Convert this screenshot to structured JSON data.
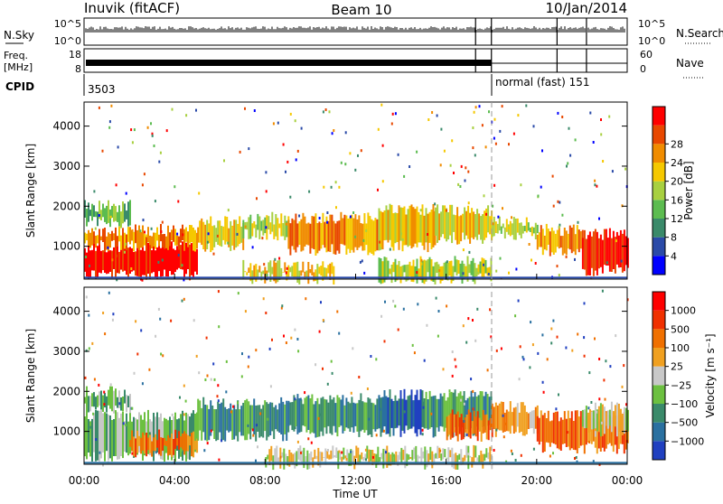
{
  "header": {
    "station": "Inuvik (fitACF)",
    "beam": "Beam 10",
    "date": "10/Jan/2014"
  },
  "top_panels": {
    "nsky_label": "N.Sky",
    "nsky_ticks": [
      "10^5",
      "10^0"
    ],
    "nsearch_label": "N.Search",
    "nsearch_ticks": [
      "10^5",
      "10^0"
    ],
    "freq_label": "Freq.",
    "freq_unit": "[MHz]",
    "freq_ticks": [
      "18",
      "8"
    ],
    "nave_label": "Nave",
    "nave_ticks": [
      "60",
      "0"
    ],
    "cpid_label": "CPID",
    "cpid_segments": [
      {
        "start_hour": 0.0,
        "text": "3503"
      },
      {
        "start_hour": 18.0,
        "text": "normal (fast) 151"
      }
    ]
  },
  "x_axis": {
    "label": "Time UT",
    "ticks": [
      "00:00",
      "04:00",
      "08:00",
      "12:00",
      "16:00",
      "20:00",
      "00:00"
    ],
    "range_hours": [
      0,
      24
    ]
  },
  "chart_data": [
    {
      "type": "heatmap",
      "quantity": "power",
      "ylabel": "Slant Range [km]",
      "ylim": [
        180,
        4600
      ],
      "yticks": [
        "1000",
        "2000",
        "3000",
        "4000"
      ],
      "colorbar_label": "Power [dB]",
      "colorbar_ticks": [
        "4",
        "8",
        "12",
        "16",
        "20",
        "24",
        "28"
      ],
      "colors": [
        "#0000ff",
        "#2a4aa8",
        "#3a8a6a",
        "#5cbc50",
        "#a8d040",
        "#f5c800",
        "#f08c00",
        "#e84800",
        "#ff0000"
      ],
      "regions": [
        {
          "t": [
            0.0,
            5.0
          ],
          "r": [
            300,
            1000
          ],
          "level": 8
        },
        {
          "t": [
            0.0,
            5.0
          ],
          "r": [
            1000,
            1400
          ],
          "level": 6
        },
        {
          "t": [
            0.0,
            2.0
          ],
          "r": [
            1600,
            2000
          ],
          "level": 3
        },
        {
          "t": [
            5.0,
            7.0
          ],
          "r": [
            1000,
            1600
          ],
          "level": 5
        },
        {
          "t": [
            7.0,
            9.0
          ],
          "r": [
            1300,
            1700
          ],
          "level": 4
        },
        {
          "t": [
            9.0,
            13.0
          ],
          "r": [
            900,
            1700
          ],
          "level": 6
        },
        {
          "t": [
            13.0,
            15.5
          ],
          "r": [
            1000,
            1900
          ],
          "level": 5
        },
        {
          "t": [
            15.5,
            18.0
          ],
          "r": [
            1200,
            1900
          ],
          "level": 5
        },
        {
          "t": [
            18.0,
            20.0
          ],
          "r": [
            1300,
            1600
          ],
          "level": 4
        },
        {
          "t": [
            20.0,
            22.0
          ],
          "r": [
            900,
            1400
          ],
          "level": 6
        },
        {
          "t": [
            22.0,
            24.0
          ],
          "r": [
            400,
            1300
          ],
          "level": 8
        },
        {
          "t": [
            7.0,
            11.0
          ],
          "r": [
            200,
            500
          ],
          "level": 5
        },
        {
          "t": [
            13.0,
            18.0
          ],
          "r": [
            200,
            600
          ],
          "level": 4
        }
      ]
    },
    {
      "type": "heatmap",
      "quantity": "velocity",
      "ylabel": "Slant Range [km]",
      "ylim": [
        180,
        4600
      ],
      "yticks": [
        "1000",
        "2000",
        "3000",
        "4000"
      ],
      "colorbar_label": "Velocity [m s⁻¹]",
      "colorbar_ticks": [
        "1000",
        "500",
        "100",
        "25",
        "−25",
        "−100",
        "−500",
        "−1000"
      ],
      "colors": [
        "#2040c0",
        "#2a70a0",
        "#3a8a6a",
        "#6cc040",
        "#c8c8c8",
        "#f0a020",
        "#f07000",
        "#f03000",
        "#ff0000"
      ],
      "regions": [
        {
          "t": [
            0.0,
            5.0
          ],
          "r": [
            400,
            1400
          ],
          "level": 3
        },
        {
          "t": [
            0.0,
            2.0
          ],
          "r": [
            1600,
            2000
          ],
          "level": 3
        },
        {
          "t": [
            2.0,
            5.0
          ],
          "r": [
            500,
            900
          ],
          "level": 6
        },
        {
          "t": [
            5.0,
            9.0
          ],
          "r": [
            900,
            1700
          ],
          "level": 2
        },
        {
          "t": [
            9.0,
            13.0
          ],
          "r": [
            1000,
            1800
          ],
          "level": 2
        },
        {
          "t": [
            13.0,
            15.0
          ],
          "r": [
            1000,
            1900
          ],
          "level": 1
        },
        {
          "t": [
            15.0,
            18.0
          ],
          "r": [
            1000,
            1900
          ],
          "level": 2
        },
        {
          "t": [
            16.0,
            18.0
          ],
          "r": [
            900,
            1400
          ],
          "level": 6
        },
        {
          "t": [
            18.0,
            20.0
          ],
          "r": [
            1000,
            1600
          ],
          "level": 5
        },
        {
          "t": [
            20.0,
            24.0
          ],
          "r": [
            600,
            1400
          ],
          "level": 6
        },
        {
          "t": [
            22.0,
            24.0
          ],
          "r": [
            1000,
            1600
          ],
          "level": 4
        },
        {
          "t": [
            8.0,
            18.0
          ],
          "r": [
            200,
            500
          ],
          "level": 4
        }
      ]
    }
  ]
}
